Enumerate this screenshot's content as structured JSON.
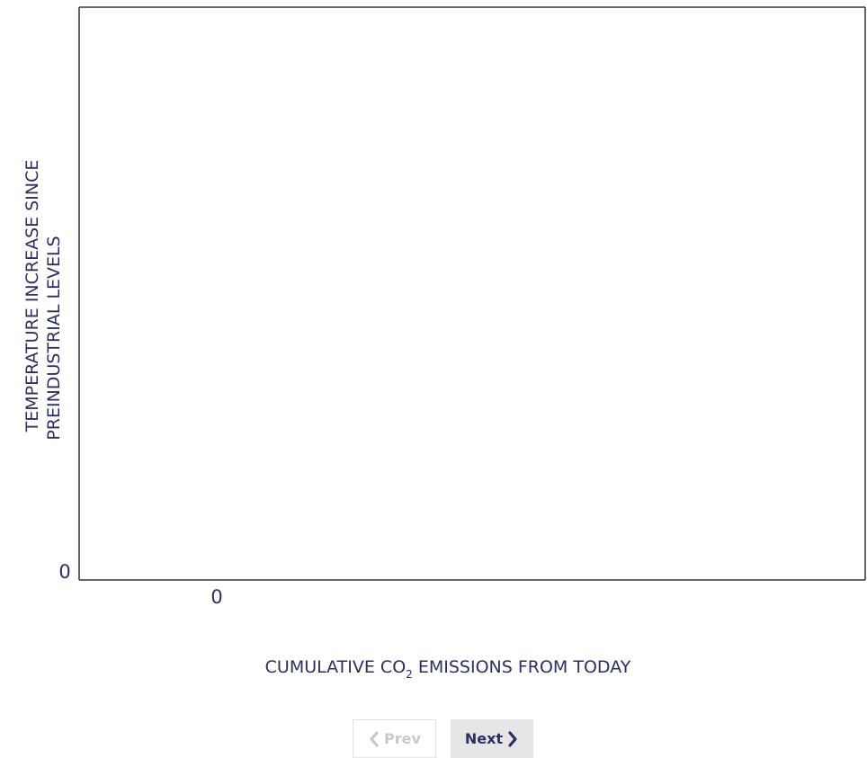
{
  "chart_data": {
    "type": "line",
    "title": "",
    "xlabel": "CUMULATIVE CO",
    "xlabel_subscript": "2",
    "xlabel_suffix": " EMISSIONS FROM TODAY",
    "ylabel_line1": "TEMPERATURE INCREASE SINCE",
    "ylabel_line2": "PREINDUSTRIAL LEVELS",
    "x_tick_labels": [
      "0"
    ],
    "y_tick_labels": [
      "0"
    ],
    "series": [],
    "grid": false,
    "axis_color": "#333333",
    "text_color": "#2b2f63"
  },
  "nav": {
    "prev_label": "Prev",
    "next_label": "Next",
    "prev_icon": "chevron-left-icon",
    "next_icon": "chevron-right-icon"
  }
}
